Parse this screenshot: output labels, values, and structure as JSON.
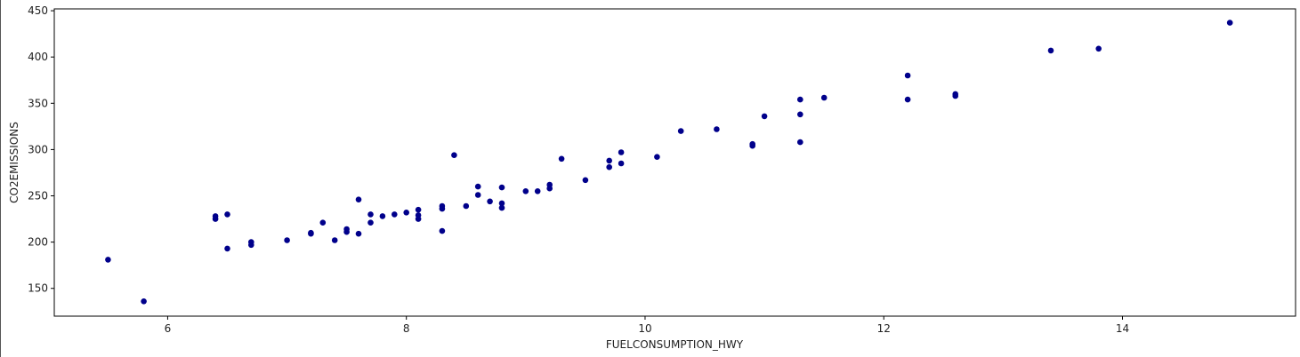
{
  "chart_data": {
    "type": "scatter",
    "title": "",
    "xlabel": "FUELCONSUMPTION_HWY",
    "ylabel": "CO2EMISSIONS",
    "xlim": [
      5.05,
      15.45
    ],
    "ylim": [
      120,
      452
    ],
    "xticks": [
      6,
      8,
      10,
      12,
      14
    ],
    "yticks": [
      150,
      200,
      250,
      300,
      350,
      400,
      450
    ],
    "grid": false,
    "marker_color": "#00008b",
    "points": [
      [
        5.5,
        181
      ],
      [
        5.8,
        136
      ],
      [
        6.4,
        228
      ],
      [
        6.4,
        225
      ],
      [
        6.5,
        230
      ],
      [
        6.5,
        193
      ],
      [
        6.7,
        200
      ],
      [
        6.7,
        197
      ],
      [
        7.0,
        202
      ],
      [
        7.2,
        209
      ],
      [
        7.2,
        210
      ],
      [
        7.3,
        221
      ],
      [
        7.4,
        202
      ],
      [
        7.5,
        214
      ],
      [
        7.5,
        211
      ],
      [
        7.6,
        246
      ],
      [
        7.6,
        209
      ],
      [
        7.7,
        230
      ],
      [
        7.7,
        221
      ],
      [
        7.8,
        228
      ],
      [
        7.9,
        230
      ],
      [
        8.0,
        232
      ],
      [
        8.1,
        235
      ],
      [
        8.1,
        229
      ],
      [
        8.1,
        225
      ],
      [
        8.3,
        239
      ],
      [
        8.3,
        236
      ],
      [
        8.3,
        212
      ],
      [
        8.4,
        294
      ],
      [
        8.5,
        239
      ],
      [
        8.6,
        260
      ],
      [
        8.6,
        251
      ],
      [
        8.7,
        244
      ],
      [
        8.8,
        259
      ],
      [
        8.8,
        242
      ],
      [
        8.8,
        237
      ],
      [
        9.0,
        255
      ],
      [
        9.1,
        255
      ],
      [
        9.2,
        262
      ],
      [
        9.2,
        258
      ],
      [
        9.3,
        290
      ],
      [
        9.5,
        267
      ],
      [
        9.7,
        288
      ],
      [
        9.7,
        281
      ],
      [
        9.8,
        297
      ],
      [
        9.8,
        285
      ],
      [
        10.1,
        292
      ],
      [
        10.3,
        320
      ],
      [
        10.6,
        322
      ],
      [
        10.9,
        306
      ],
      [
        10.9,
        304
      ],
      [
        11.0,
        336
      ],
      [
        11.3,
        354
      ],
      [
        11.3,
        338
      ],
      [
        11.3,
        308
      ],
      [
        11.5,
        356
      ],
      [
        12.2,
        380
      ],
      [
        12.2,
        354
      ],
      [
        12.6,
        360
      ],
      [
        12.6,
        358
      ],
      [
        13.4,
        407
      ],
      [
        13.8,
        409
      ],
      [
        14.9,
        437
      ]
    ]
  }
}
